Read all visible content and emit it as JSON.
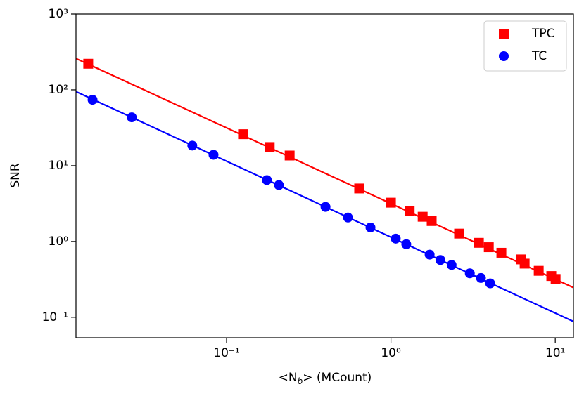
{
  "chart_data": {
    "type": "scatter",
    "xlabel": [
      "<N",
      "b",
      "> (MCount)"
    ],
    "ylabel": "SNR",
    "xscale": "log",
    "yscale": "log",
    "xlim": [
      0.01213,
      12.9
    ],
    "ylim": [
      0.0537,
      1000
    ],
    "xticks": [
      {
        "value": 0.1,
        "label": "10⁻¹"
      },
      {
        "value": 1,
        "label": "10⁰"
      },
      {
        "value": 10,
        "label": "10¹"
      }
    ],
    "yticks": [
      {
        "value": 0.1,
        "label": "10⁻¹"
      },
      {
        "value": 1,
        "label": "10⁰"
      },
      {
        "value": 10,
        "label": "10¹"
      },
      {
        "value": 100,
        "label": "10²"
      },
      {
        "value": 1000,
        "label": "10³"
      }
    ],
    "legend": "upper right",
    "series": [
      {
        "name": "TPC",
        "color": "#ff0000",
        "marker": "square",
        "x": [
          0.0144,
          0.126,
          0.183,
          0.242,
          0.641,
          1.0,
          1.3,
          1.56,
          1.77,
          2.6,
          3.43,
          3.94,
          4.7,
          6.19,
          6.51,
          7.93,
          9.46,
          10.05
        ],
        "values": [
          221,
          26,
          17.6,
          13.6,
          5.0,
          3.25,
          2.51,
          2.12,
          1.86,
          1.27,
          0.96,
          0.84,
          0.71,
          0.58,
          0.51,
          0.41,
          0.35,
          0.32
        ]
      },
      {
        "name": "TC",
        "color": "#0000ff",
        "marker": "circle",
        "x": [
          0.0153,
          0.0265,
          0.0619,
          0.0833,
          0.176,
          0.208,
          0.4,
          0.548,
          0.751,
          1.07,
          1.24,
          1.72,
          2.0,
          2.34,
          3.02,
          3.53,
          4.02
        ],
        "values": [
          74,
          43.4,
          18.4,
          13.9,
          6.45,
          5.55,
          2.86,
          2.07,
          1.53,
          1.09,
          0.92,
          0.67,
          0.57,
          0.49,
          0.38,
          0.33,
          0.28
        ]
      }
    ],
    "lines": [
      {
        "color": "#ff0000",
        "x": [
          0.01213,
          12.9
        ],
        "values": [
          259,
          0.246
        ]
      },
      {
        "color": "#0000ff",
        "x": [
          0.01213,
          12.9
        ],
        "values": [
          94.8,
          0.0879
        ]
      }
    ]
  }
}
